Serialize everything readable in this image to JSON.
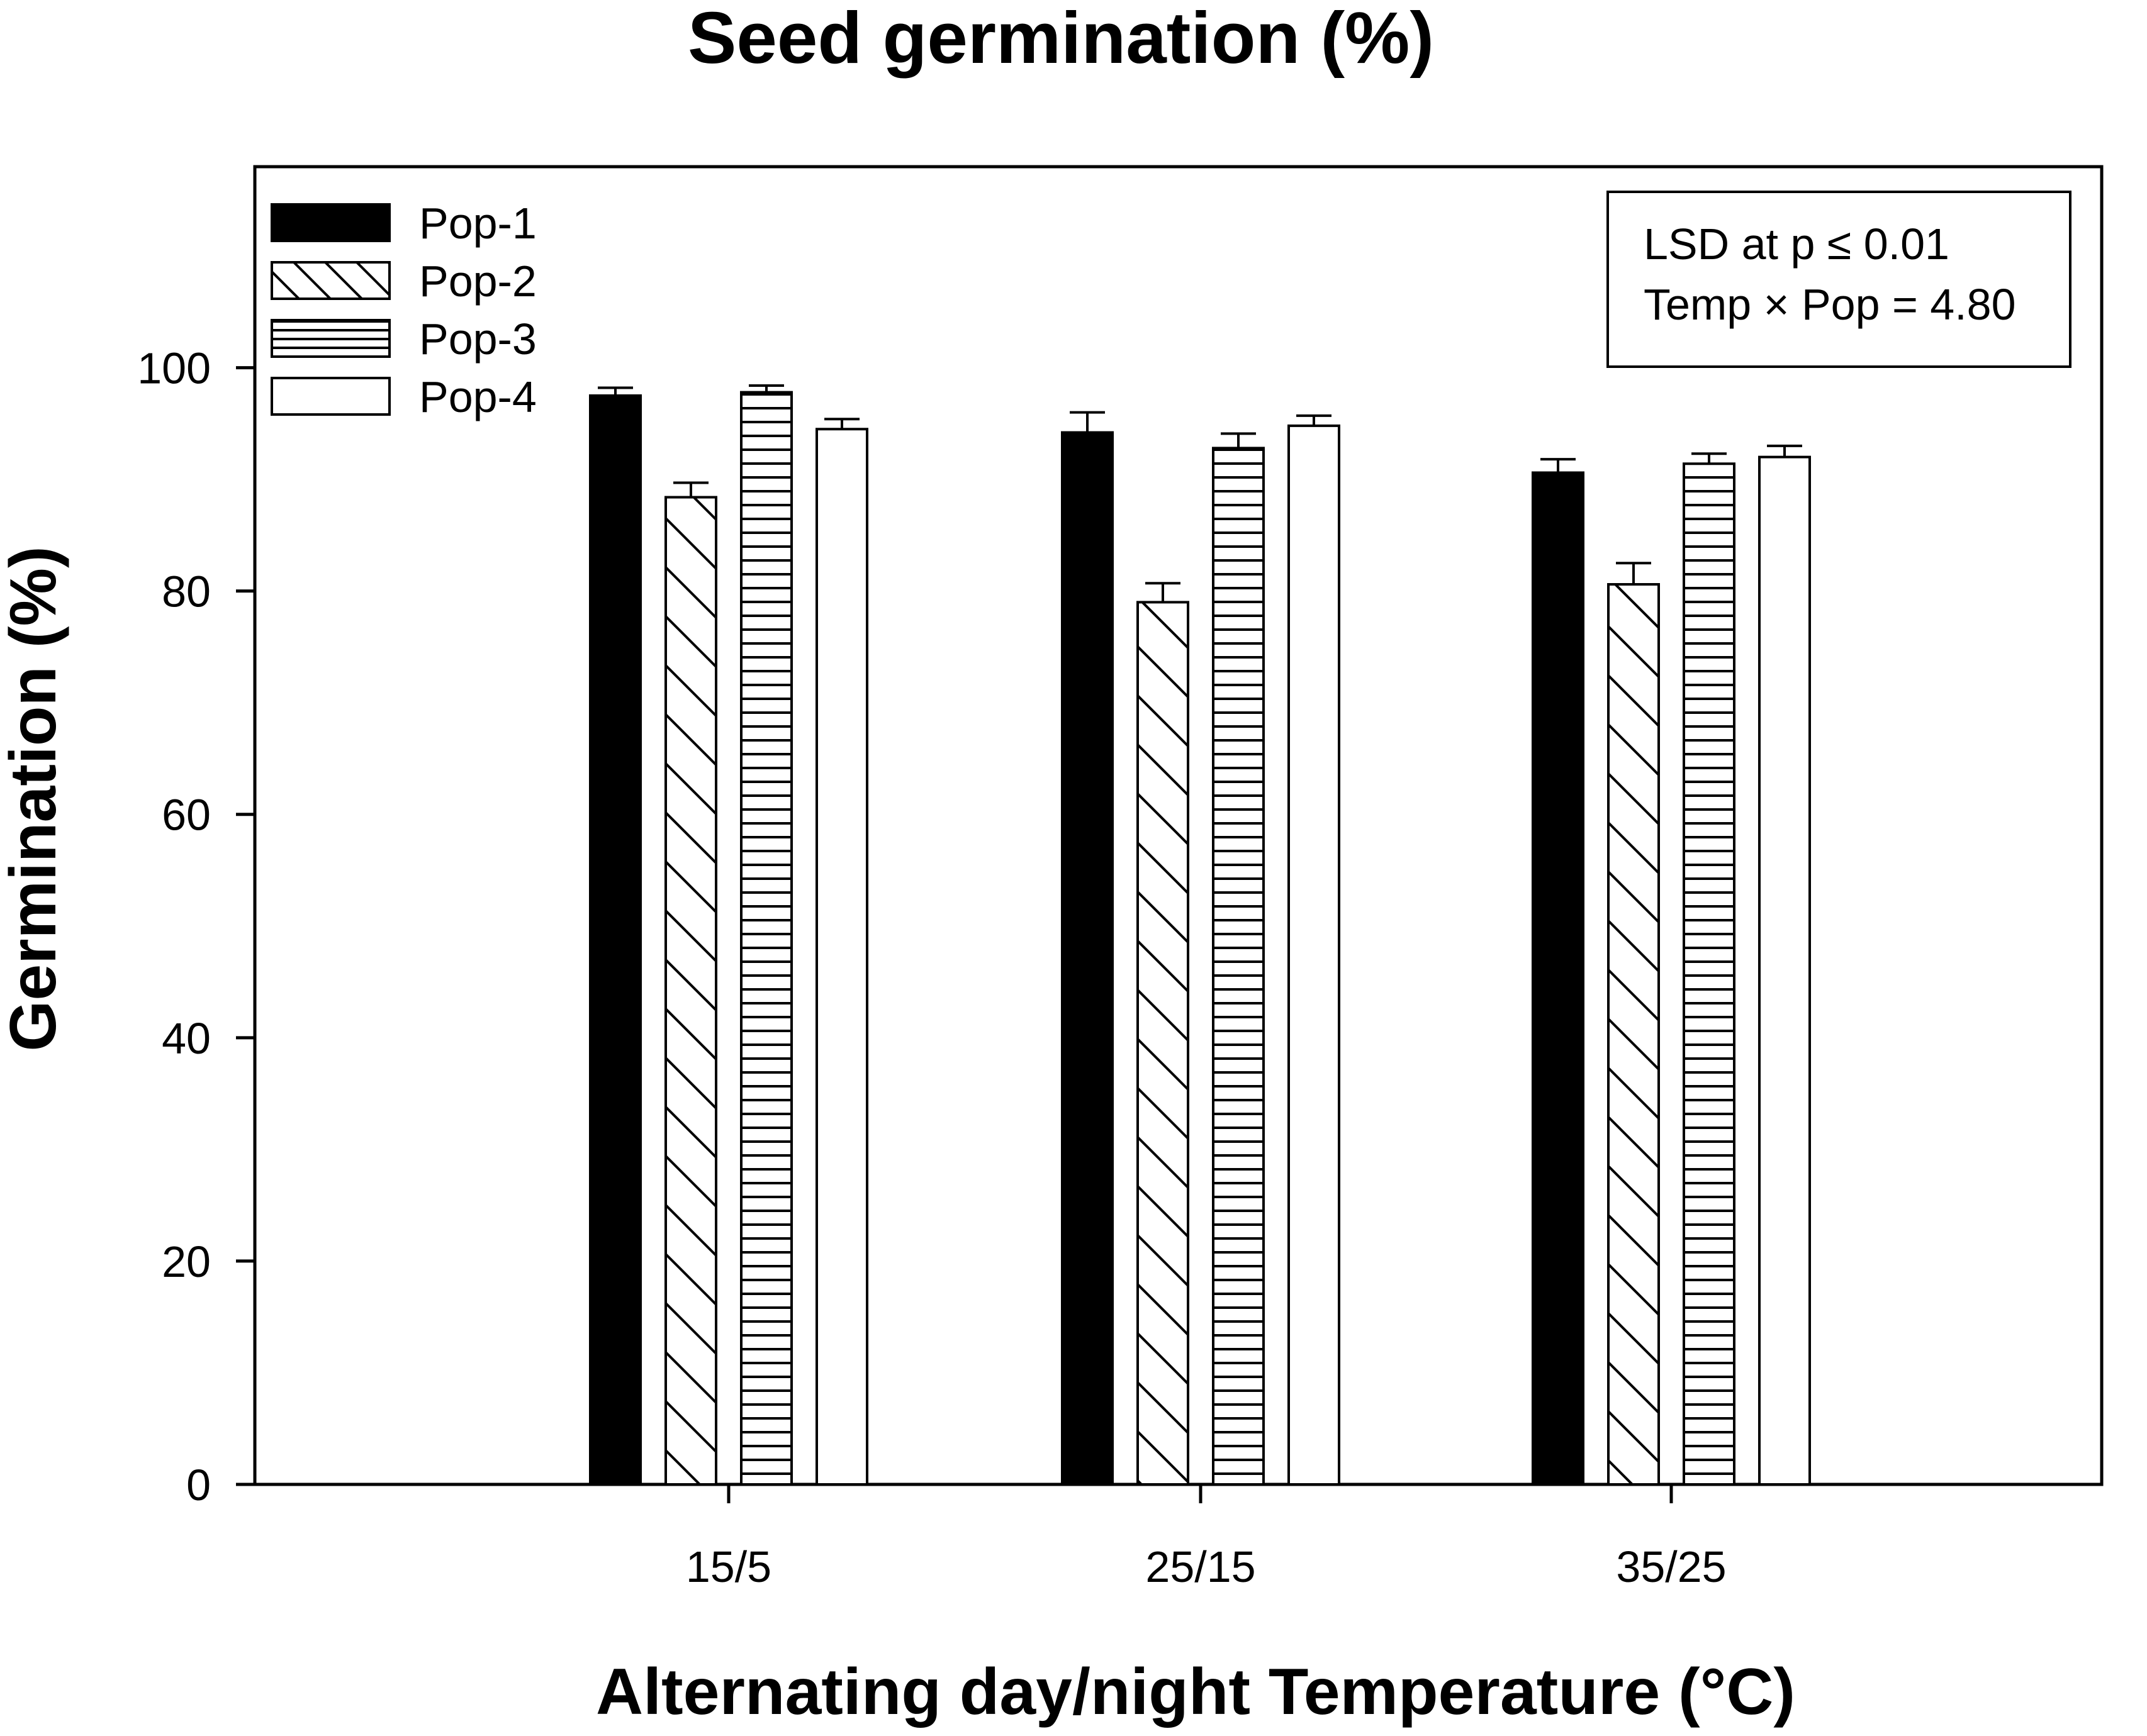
{
  "chart_data": {
    "type": "bar",
    "title": "Seed germination (%)",
    "xlabel": "Alternating day/night Temperature (°C)",
    "ylabel": "Germination (%)",
    "categories": [
      "15/5",
      "25/15",
      "35/25"
    ],
    "ylim": [
      0,
      118
    ],
    "yticks": [
      0,
      20,
      40,
      60,
      80,
      100
    ],
    "grid": false,
    "legend_position": "top-left",
    "series": [
      {
        "name": "Pop-1",
        "fill": "solid-black",
        "values": [
          97.5,
          94.2,
          90.6
        ],
        "errors": [
          0.7,
          1.8,
          1.2
        ]
      },
      {
        "name": "Pop-2",
        "fill": "diagonal-hatch",
        "values": [
          88.4,
          79.0,
          80.6
        ],
        "errors": [
          1.3,
          1.7,
          1.9
        ]
      },
      {
        "name": "Pop-3",
        "fill": "horizontal-hatch",
        "values": [
          97.8,
          92.8,
          91.4
        ],
        "errors": [
          0.6,
          1.3,
          0.9
        ]
      },
      {
        "name": "Pop-4",
        "fill": "white",
        "values": [
          94.5,
          94.8,
          92.0
        ],
        "errors": [
          0.9,
          0.9,
          1.0
        ]
      }
    ],
    "annotation": {
      "line1": "LSD at p ≤ 0.01",
      "line2": "Temp × Pop = 4.80"
    }
  }
}
